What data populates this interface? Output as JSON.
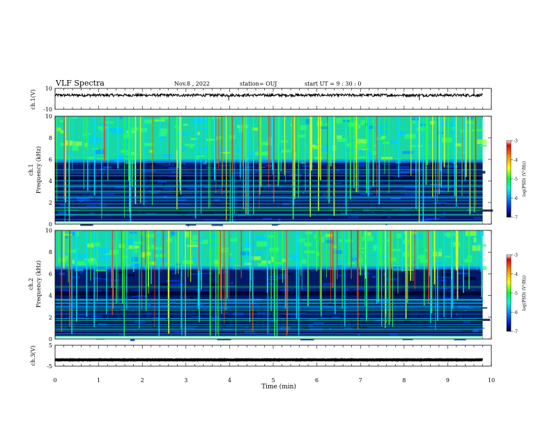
{
  "header": {
    "title": "VLF Spectra",
    "date": "Nov.8  , 2022",
    "station": "station= OUJ",
    "start": "start  UT =   9  : 30 : 0"
  },
  "colorbar": {
    "label": "log(PSD) (V²/Hz)",
    "ticks": [
      "-3",
      "-4",
      "-5",
      "-6",
      "-7"
    ],
    "colors": [
      "#ffffff",
      "#e60000",
      "#ff9900",
      "#ffff00",
      "#00ff33",
      "#00ffcc",
      "#0099ff",
      "#0022dd",
      "#000033"
    ]
  },
  "chart_data": [
    {
      "type": "line",
      "panel": "ch1-waveform",
      "ylabel": "ch.1(V)",
      "ytick_labels": [
        "10",
        "-10"
      ],
      "ylim": [
        -10,
        10
      ],
      "xlim": [
        0,
        10
      ],
      "x_end": 9.8,
      "baseline": 3.5,
      "spikes": [
        {
          "x": 3.98,
          "y": -1.5
        },
        {
          "x": 8.35,
          "y": -1.2
        },
        {
          "x": 9.6,
          "y": 9.5
        }
      ]
    },
    {
      "type": "heatmap",
      "panel": "ch1-spectrogram",
      "ylabel_lines": [
        "ch.1",
        "Frequency (kHz)"
      ],
      "ytick_labels": [
        "0",
        "2",
        "4",
        "6",
        "8",
        "10"
      ],
      "ylim": [
        0,
        10
      ],
      "xlim": [
        0,
        10
      ],
      "x_end": 9.8,
      "band_edge_khz": 5.8,
      "color_range": [
        -7,
        -3
      ]
    },
    {
      "type": "heatmap",
      "panel": "ch2-spectrogram",
      "ylabel_lines": [
        "ch.2",
        "Frequency (kHz)"
      ],
      "ytick_labels": [
        "0",
        "2",
        "4",
        "6",
        "8",
        "10"
      ],
      "ylim": [
        0,
        10
      ],
      "xlim": [
        0,
        10
      ],
      "x_end": 9.8,
      "band_edge_khz": 6.5,
      "color_range": [
        -7,
        -3
      ]
    },
    {
      "type": "line",
      "panel": "ch3-waveform",
      "ylabel": "ch.3(V)",
      "ytick_labels": [
        "5",
        "-5"
      ],
      "ylim": [
        -5,
        5
      ],
      "xlim": [
        0,
        10
      ],
      "x_end": 9.8,
      "baseline": -2
    }
  ],
  "xaxis": {
    "label": "Time  (min)",
    "ticks": [
      "0",
      "1",
      "2",
      "3",
      "4",
      "5",
      "6",
      "7",
      "8",
      "9",
      "10"
    ]
  }
}
